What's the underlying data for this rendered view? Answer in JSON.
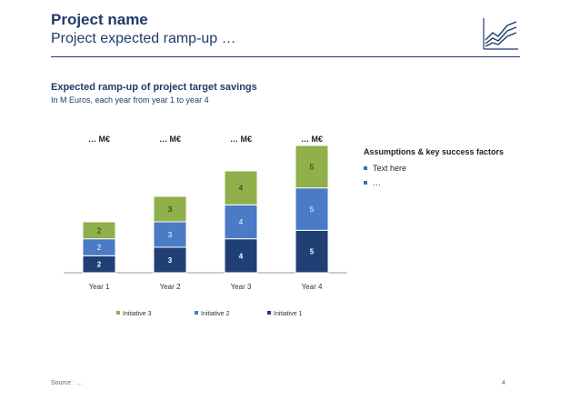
{
  "header": {
    "title": "Project name",
    "subtitle": "Project expected ramp-up …"
  },
  "section": {
    "title": "Expected ramp-up of project target savings",
    "subtitle": "In M Euros, each year from year 1 to year 4"
  },
  "assumptions": {
    "title": "Assumptions & key success factors",
    "items": [
      "Text here",
      "…"
    ]
  },
  "footer": {
    "source": "Source : …",
    "page": "4"
  },
  "colors": {
    "initiative1": "#1f3f75",
    "initiative2": "#4a7bc4",
    "initiative3": "#8fb04a",
    "brand": "#1f3a6b"
  },
  "logo_icon": "line-chart-icon",
  "chart_data": {
    "type": "bar",
    "stacked": true,
    "categories": [
      "Year 1",
      "Year 2",
      "Year 3",
      "Year 4"
    ],
    "totals_labels": [
      "… M€",
      "… M€",
      "… M€",
      "… M€"
    ],
    "series": [
      {
        "name": "Initiative 1",
        "values": [
          2,
          3,
          4,
          5
        ]
      },
      {
        "name": "Initiative 2",
        "values": [
          2,
          3,
          4,
          5
        ]
      },
      {
        "name": "Initiative 3",
        "values": [
          2,
          3,
          4,
          5
        ]
      }
    ],
    "legend_order": [
      "Initiative 3",
      "Initiative 2",
      "Initiative 1"
    ],
    "legend_position": "bottom",
    "grid": false,
    "ylim": [
      0,
      15
    ]
  }
}
